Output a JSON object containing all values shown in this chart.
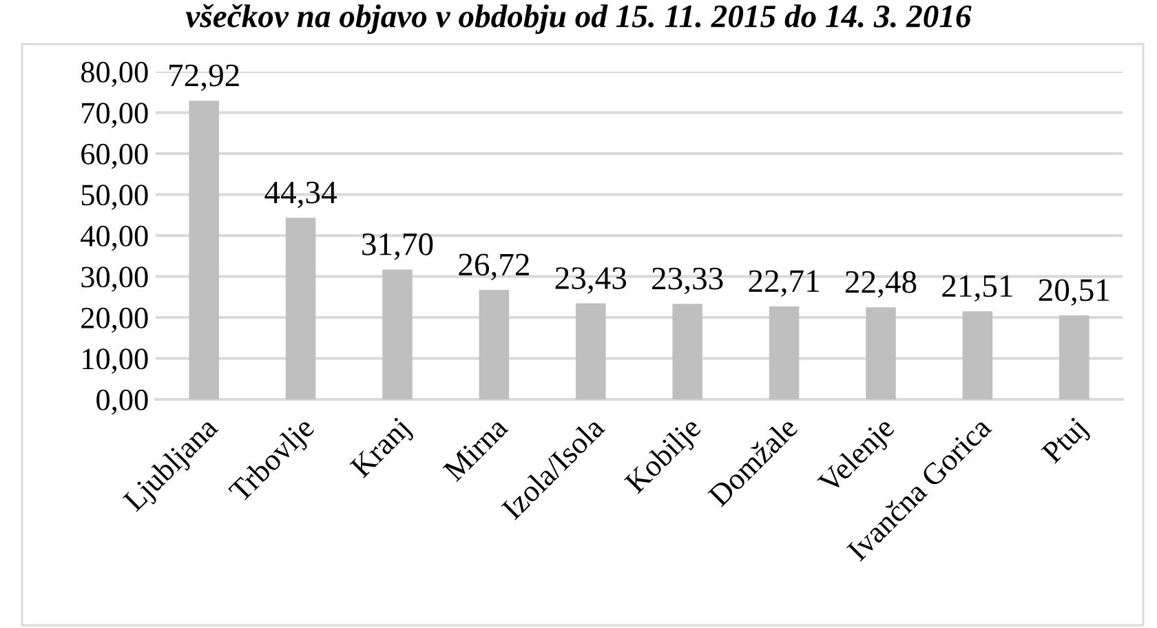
{
  "chart_data": {
    "type": "bar",
    "title": "všečkov na objavo v obdobju od 15. 11. 2015 do 14. 3. 2016",
    "categories": [
      "Ljubljana",
      "Trbovlje",
      "Kranj",
      "Mirna",
      "Izola/Isola",
      "Kobilje",
      "Domžale",
      "Velenje",
      "Ivančna Gorica",
      "Ptuj"
    ],
    "values": [
      72.92,
      44.34,
      31.7,
      26.72,
      23.43,
      23.33,
      22.71,
      22.48,
      21.51,
      20.51
    ],
    "value_labels": [
      "72,92",
      "44,34",
      "31,70",
      "26,72",
      "23,43",
      "23,33",
      "22,71",
      "22,48",
      "21,51",
      "20,51"
    ],
    "color": "#bfbfbf",
    "ylim": [
      0,
      80
    ],
    "yticks": [
      {
        "value": 0,
        "label": "0,00"
      },
      {
        "value": 10,
        "label": "10,00"
      },
      {
        "value": 20,
        "label": "20,00"
      },
      {
        "value": 30,
        "label": "30,00"
      },
      {
        "value": 40,
        "label": "40,00"
      },
      {
        "value": 50,
        "label": "50,00"
      },
      {
        "value": 60,
        "label": "60,00"
      },
      {
        "value": 70,
        "label": "70,00"
      },
      {
        "value": 80,
        "label": "80,00"
      }
    ],
    "grid": "y"
  }
}
